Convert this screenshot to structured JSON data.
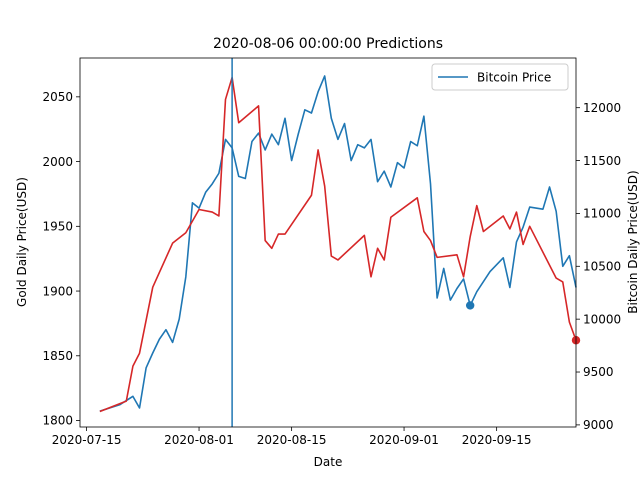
{
  "chart_data": {
    "type": "line",
    "title": "2020-08-06 00:00:00 Predictions",
    "xlabel": "Date",
    "ylabel_left": "Gold Daily Price(USD)",
    "ylabel_right": "Bitcoin Daily Price(USD)",
    "x_range": [
      "2020-07-14",
      "2020-09-27"
    ],
    "x_ticks": [
      "2020-07-15",
      "2020-08-01",
      "2020-08-15",
      "2020-09-01",
      "2020-09-15"
    ],
    "y_left_range": [
      1795,
      2080
    ],
    "y_left_ticks": [
      1800,
      1850,
      1900,
      1950,
      2000,
      2050
    ],
    "y_right_range": [
      8980,
      12470
    ],
    "y_right_ticks": [
      9000,
      9500,
      10000,
      10500,
      11000,
      11500,
      12000
    ],
    "vertical_line": {
      "date": "2020-08-06",
      "color": "#1f77b4"
    },
    "legend": {
      "position": "top-right",
      "entries": [
        "Bitcoin Price"
      ]
    },
    "grid": false,
    "series": [
      {
        "name": "Bitcoin Price",
        "axis": "right",
        "color": "#1f77b4",
        "points": [
          [
            "2020-07-17",
            9130
          ],
          [
            "2020-07-20",
            9190
          ],
          [
            "2020-07-22",
            9270
          ],
          [
            "2020-07-23",
            9160
          ],
          [
            "2020-07-24",
            9540
          ],
          [
            "2020-07-25",
            9680
          ],
          [
            "2020-07-26",
            9810
          ],
          [
            "2020-07-27",
            9900
          ],
          [
            "2020-07-28",
            9780
          ],
          [
            "2020-07-29",
            10000
          ],
          [
            "2020-07-30",
            10400
          ],
          [
            "2020-07-31",
            11100
          ],
          [
            "2020-08-01",
            11050
          ],
          [
            "2020-08-02",
            11200
          ],
          [
            "2020-08-03",
            11280
          ],
          [
            "2020-08-04",
            11380
          ],
          [
            "2020-08-05",
            11700
          ],
          [
            "2020-08-06",
            11620
          ],
          [
            "2020-08-07",
            11350
          ],
          [
            "2020-08-08",
            11330
          ],
          [
            "2020-08-09",
            11680
          ],
          [
            "2020-08-10",
            11760
          ],
          [
            "2020-08-11",
            11600
          ],
          [
            "2020-08-12",
            11750
          ],
          [
            "2020-08-13",
            11650
          ],
          [
            "2020-08-14",
            11900
          ],
          [
            "2020-08-15",
            11500
          ],
          [
            "2020-08-16",
            11750
          ],
          [
            "2020-08-17",
            11980
          ],
          [
            "2020-08-18",
            11950
          ],
          [
            "2020-08-19",
            12150
          ],
          [
            "2020-08-20",
            12300
          ],
          [
            "2020-08-21",
            11900
          ],
          [
            "2020-08-22",
            11700
          ],
          [
            "2020-08-23",
            11850
          ],
          [
            "2020-08-24",
            11500
          ],
          [
            "2020-08-25",
            11650
          ],
          [
            "2020-08-26",
            11620
          ],
          [
            "2020-08-27",
            11700
          ],
          [
            "2020-08-28",
            11300
          ],
          [
            "2020-08-29",
            11400
          ],
          [
            "2020-08-30",
            11250
          ],
          [
            "2020-08-31",
            11480
          ],
          [
            "2020-09-01",
            11430
          ],
          [
            "2020-09-02",
            11680
          ],
          [
            "2020-09-03",
            11640
          ],
          [
            "2020-09-04",
            11920
          ],
          [
            "2020-09-05",
            11280
          ],
          [
            "2020-09-06",
            10200
          ],
          [
            "2020-09-07",
            10480
          ],
          [
            "2020-09-08",
            10180
          ],
          [
            "2020-09-09",
            10290
          ],
          [
            "2020-09-10",
            10380
          ],
          [
            "2020-09-11",
            10130
          ],
          [
            "2020-09-12",
            10260
          ],
          [
            "2020-09-14",
            10450
          ],
          [
            "2020-09-16",
            10580
          ],
          [
            "2020-09-17",
            10300
          ],
          [
            "2020-09-18",
            10730
          ],
          [
            "2020-09-19",
            10870
          ],
          [
            "2020-09-20",
            11060
          ],
          [
            "2020-09-22",
            11040
          ],
          [
            "2020-09-23",
            11250
          ],
          [
            "2020-09-24",
            11020
          ],
          [
            "2020-09-25",
            10500
          ],
          [
            "2020-09-26",
            10600
          ],
          [
            "2020-09-27",
            10300
          ]
        ],
        "marker": [
          "2020-09-11",
          10130
        ]
      },
      {
        "name": "",
        "axis": "left",
        "color": "#d62728",
        "points": [
          [
            "2020-07-17",
            1807
          ],
          [
            "2020-07-21",
            1815
          ],
          [
            "2020-07-22",
            1842
          ],
          [
            "2020-07-23",
            1852
          ],
          [
            "2020-07-25",
            1903
          ],
          [
            "2020-07-28",
            1937
          ],
          [
            "2020-07-30",
            1945
          ],
          [
            "2020-08-01",
            1963
          ],
          [
            "2020-08-03",
            1961
          ],
          [
            "2020-08-04",
            1958
          ],
          [
            "2020-08-05",
            2048
          ],
          [
            "2020-08-06",
            2065
          ],
          [
            "2020-08-07",
            2030
          ],
          [
            "2020-08-10",
            2043
          ],
          [
            "2020-08-11",
            1939
          ],
          [
            "2020-08-12",
            1933
          ],
          [
            "2020-08-13",
            1944
          ],
          [
            "2020-08-14",
            1944
          ],
          [
            "2020-08-18",
            1974
          ],
          [
            "2020-08-19",
            2009
          ],
          [
            "2020-08-20",
            1981
          ],
          [
            "2020-08-21",
            1927
          ],
          [
            "2020-08-22",
            1924
          ],
          [
            "2020-08-26",
            1943
          ],
          [
            "2020-08-27",
            1911
          ],
          [
            "2020-08-28",
            1933
          ],
          [
            "2020-08-29",
            1924
          ],
          [
            "2020-08-30",
            1957
          ],
          [
            "2020-09-03",
            1972
          ],
          [
            "2020-09-04",
            1946
          ],
          [
            "2020-09-05",
            1939
          ],
          [
            "2020-09-06",
            1926
          ],
          [
            "2020-09-09",
            1928
          ],
          [
            "2020-09-10",
            1911
          ],
          [
            "2020-09-11",
            1942
          ],
          [
            "2020-09-12",
            1966
          ],
          [
            "2020-09-13",
            1946
          ],
          [
            "2020-09-16",
            1958
          ],
          [
            "2020-09-17",
            1948
          ],
          [
            "2020-09-18",
            1961
          ],
          [
            "2020-09-19",
            1936
          ],
          [
            "2020-09-20",
            1950
          ],
          [
            "2020-09-24",
            1910
          ],
          [
            "2020-09-25",
            1907
          ],
          [
            "2020-09-26",
            1876
          ],
          [
            "2020-09-27",
            1862
          ]
        ],
        "marker": [
          "2020-09-27",
          1862
        ]
      }
    ]
  }
}
